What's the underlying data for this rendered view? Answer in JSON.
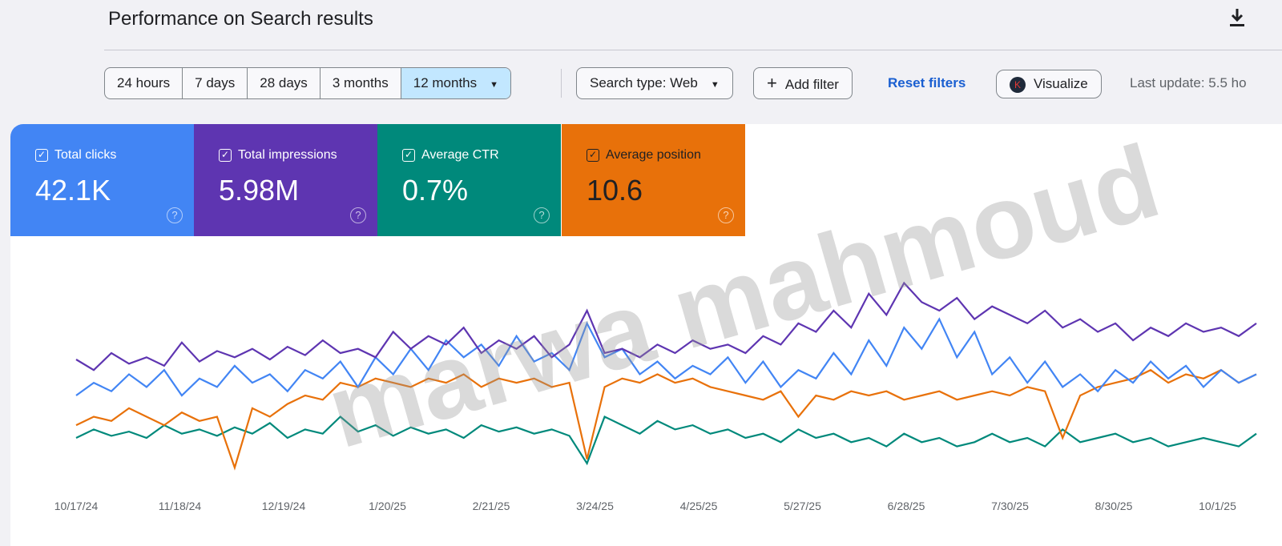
{
  "header": {
    "title": "Performance on Search results",
    "download_icon": "download-icon"
  },
  "toolbar": {
    "ranges": [
      "24 hours",
      "7 days",
      "28 days",
      "3 months",
      "12 months"
    ],
    "selected_range": "12 months",
    "search_type": "Search type: Web",
    "add_filter": "Add filter",
    "reset_filters": "Reset filters",
    "visualize": "Visualize",
    "visualize_badge": "K",
    "last_update": "Last update: 5.5 ho"
  },
  "metrics": [
    {
      "label": "Total clicks",
      "value": "42.1K",
      "color": "#4285f4",
      "text": "#ffffff"
    },
    {
      "label": "Total impressions",
      "value": "5.98M",
      "color": "#5e35b1",
      "text": "#ffffff"
    },
    {
      "label": "Average CTR",
      "value": "0.7%",
      "color": "#00897b",
      "text": "#ffffff"
    },
    {
      "label": "Average position",
      "value": "10.6",
      "color": "#e8710a",
      "text": "#202124"
    }
  ],
  "watermark": "marwa mahmoud",
  "chart_data": {
    "type": "line",
    "x_labels": [
      "10/17/24",
      "11/18/24",
      "12/19/24",
      "1/20/25",
      "2/21/25",
      "3/24/25",
      "4/25/25",
      "5/27/25",
      "6/28/25",
      "7/30/25",
      "8/30/25",
      "10/1/25"
    ],
    "ylim": [
      0,
      100
    ],
    "grid": false,
    "series": [
      {
        "name": "Total impressions",
        "color": "#5e35b1",
        "values": [
          57,
          52,
          60,
          55,
          58,
          54,
          65,
          56,
          61,
          58,
          62,
          57,
          63,
          59,
          66,
          60,
          62,
          58,
          70,
          62,
          68,
          64,
          72,
          60,
          66,
          62,
          68,
          58,
          64,
          80,
          60,
          62,
          58,
          64,
          60,
          66,
          62,
          64,
          60,
          68,
          64,
          74,
          70,
          80,
          72,
          88,
          78,
          93,
          84,
          80,
          86,
          76,
          82,
          78,
          74,
          80,
          72,
          76,
          70,
          74,
          66,
          72,
          68,
          74,
          70,
          72,
          68,
          74
        ]
      },
      {
        "name": "Total clicks",
        "color": "#4285f4",
        "values": [
          40,
          46,
          42,
          50,
          44,
          52,
          40,
          48,
          44,
          54,
          46,
          50,
          42,
          52,
          48,
          56,
          44,
          58,
          50,
          62,
          52,
          66,
          58,
          64,
          54,
          68,
          56,
          60,
          52,
          74,
          58,
          62,
          50,
          56,
          48,
          54,
          50,
          58,
          46,
          56,
          44,
          52,
          48,
          60,
          50,
          66,
          54,
          72,
          62,
          76,
          58,
          70,
          50,
          58,
          46,
          56,
          44,
          50,
          42,
          52,
          46,
          56,
          48,
          54,
          44,
          52,
          46,
          50
        ]
      },
      {
        "name": "Average position",
        "color": "#e8710a",
        "values": [
          26,
          30,
          28,
          34,
          30,
          26,
          32,
          28,
          30,
          6,
          34,
          30,
          36,
          40,
          38,
          46,
          44,
          48,
          46,
          44,
          48,
          46,
          50,
          44,
          48,
          46,
          48,
          44,
          46,
          10,
          44,
          48,
          46,
          50,
          46,
          48,
          44,
          42,
          40,
          38,
          42,
          30,
          40,
          38,
          42,
          40,
          42,
          38,
          40,
          42,
          38,
          40,
          42,
          40,
          44,
          42,
          20,
          40,
          44,
          46,
          48,
          52,
          46,
          50,
          48,
          52,
          46,
          50
        ]
      },
      {
        "name": "Average CTR",
        "color": "#00897b",
        "values": [
          20,
          24,
          21,
          23,
          20,
          26,
          22,
          24,
          21,
          25,
          22,
          27,
          20,
          24,
          22,
          30,
          23,
          26,
          21,
          25,
          22,
          24,
          20,
          26,
          23,
          25,
          22,
          24,
          21,
          8,
          30,
          26,
          22,
          28,
          24,
          26,
          22,
          24,
          20,
          22,
          18,
          24,
          20,
          22,
          18,
          20,
          16,
          22,
          18,
          20,
          16,
          18,
          22,
          18,
          20,
          16,
          24,
          18,
          20,
          22,
          18,
          20,
          16,
          18,
          20,
          18,
          16,
          22
        ]
      }
    ]
  }
}
